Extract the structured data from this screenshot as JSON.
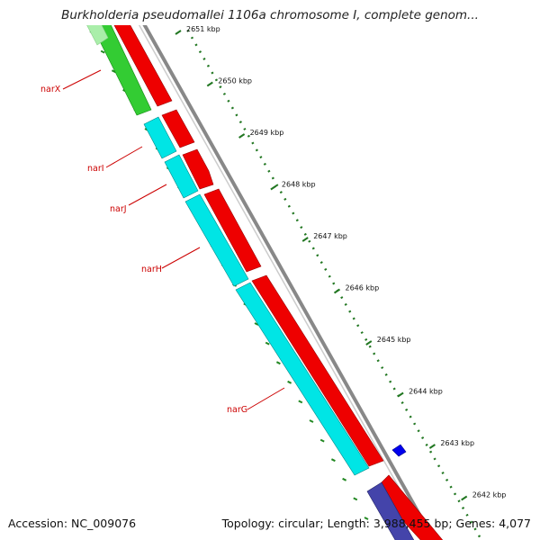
{
  "title": "Burkholderia pseudomallei 1106a chromosome I, complete genom...",
  "footer": {
    "accession": "Accession: NC_009076",
    "summary": "Topology: circular; Length: 3,988,455 bp; Genes: 4,077"
  },
  "ruler": {
    "ticks": [
      "2651 kbp",
      "2650 kbp",
      "2649 kbp",
      "2648 kbp",
      "2647 kbp",
      "2646 kbp",
      "2645 kbp",
      "2644 kbp",
      "2643 kbp",
      "2642 kbp"
    ]
  },
  "genes": [
    {
      "name": "narX",
      "color": "#33cc33"
    },
    {
      "name": "narI",
      "color": "#00e5e5"
    },
    {
      "name": "narJ",
      "color": "#00e5e5"
    },
    {
      "name": "narH",
      "color": "#00e5e5"
    },
    {
      "name": "narG",
      "color": "#00e5e5"
    }
  ],
  "colors": {
    "cds": "#ee0000",
    "rna": "#4444aa",
    "misc": "#0000ee",
    "backbone": "#888888",
    "ruler": "#227722",
    "label": "#cc0000"
  }
}
